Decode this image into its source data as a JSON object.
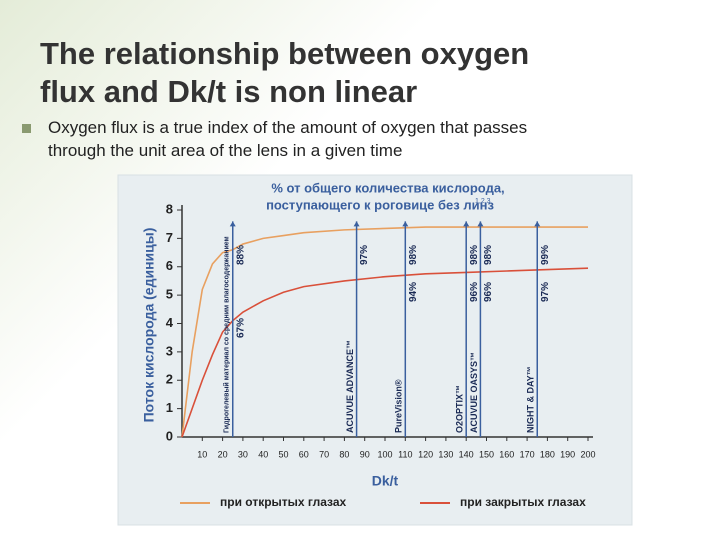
{
  "slide": {
    "title": [
      "The relationship between oxygen",
      "flux and Dk/t is non linear"
    ],
    "bullet": [
      "Oxygen flux is a true index of the amount of oxygen that passes",
      "through the unit area of the lens in a given time"
    ]
  },
  "chart_data": {
    "type": "line",
    "title": [
      "% от общего количества кислорода,",
      "поступающего к роговице без линз"
    ],
    "title_note": "1,2,3",
    "x_label": "Dk/t",
    "y_label": "Поток кислорода (единицы)",
    "x": [
      0,
      5,
      10,
      15,
      20,
      25,
      30,
      40,
      50,
      60,
      80,
      100,
      120,
      140,
      160,
      180,
      200
    ],
    "series": [
      {
        "name": "при открытых глазах",
        "color": "#e8a060",
        "values": [
          0,
          3.0,
          5.2,
          6.1,
          6.5,
          6.6,
          6.8,
          7.0,
          7.1,
          7.2,
          7.3,
          7.35,
          7.4,
          7.4,
          7.4,
          7.4,
          7.4
        ]
      },
      {
        "name": "при закрытых глазах",
        "color": "#d9503a",
        "values": [
          0,
          1.0,
          2.0,
          2.9,
          3.7,
          4.1,
          4.4,
          4.8,
          5.1,
          5.3,
          5.5,
          5.65,
          5.75,
          5.8,
          5.85,
          5.9,
          5.95
        ]
      }
    ],
    "xlim": [
      0,
      200
    ],
    "xticks": [
      10,
      20,
      30,
      40,
      50,
      60,
      70,
      80,
      90,
      100,
      110,
      120,
      130,
      140,
      150,
      160,
      170,
      180,
      190,
      200
    ],
    "ylim": [
      0,
      8
    ],
    "yticks": [
      0,
      1,
      2,
      3,
      4,
      5,
      6,
      7,
      8
    ],
    "lenses": [
      {
        "name": "Гидрогелевый материал со средним влагосодержанием",
        "x": 25,
        "open_label": "88%",
        "closed_label": "67%"
      },
      {
        "name": "ACUVUE ADVANCE™",
        "x": 86,
        "open_label": "97%"
      },
      {
        "name": "PureVision®",
        "x": 110,
        "open_label": "98%",
        "closed_label": "94%"
      },
      {
        "name": "O2OPTIX™",
        "x": 140,
        "open_label": "98%",
        "closed_label": "96%"
      },
      {
        "name": "ACUVUE OASYS™",
        "x": 147,
        "open_label": "98%",
        "closed_label": "96%"
      },
      {
        "name": "NIGHT & DAY™",
        "x": 175,
        "open_label": "99%",
        "closed_label": "97%"
      }
    ]
  }
}
